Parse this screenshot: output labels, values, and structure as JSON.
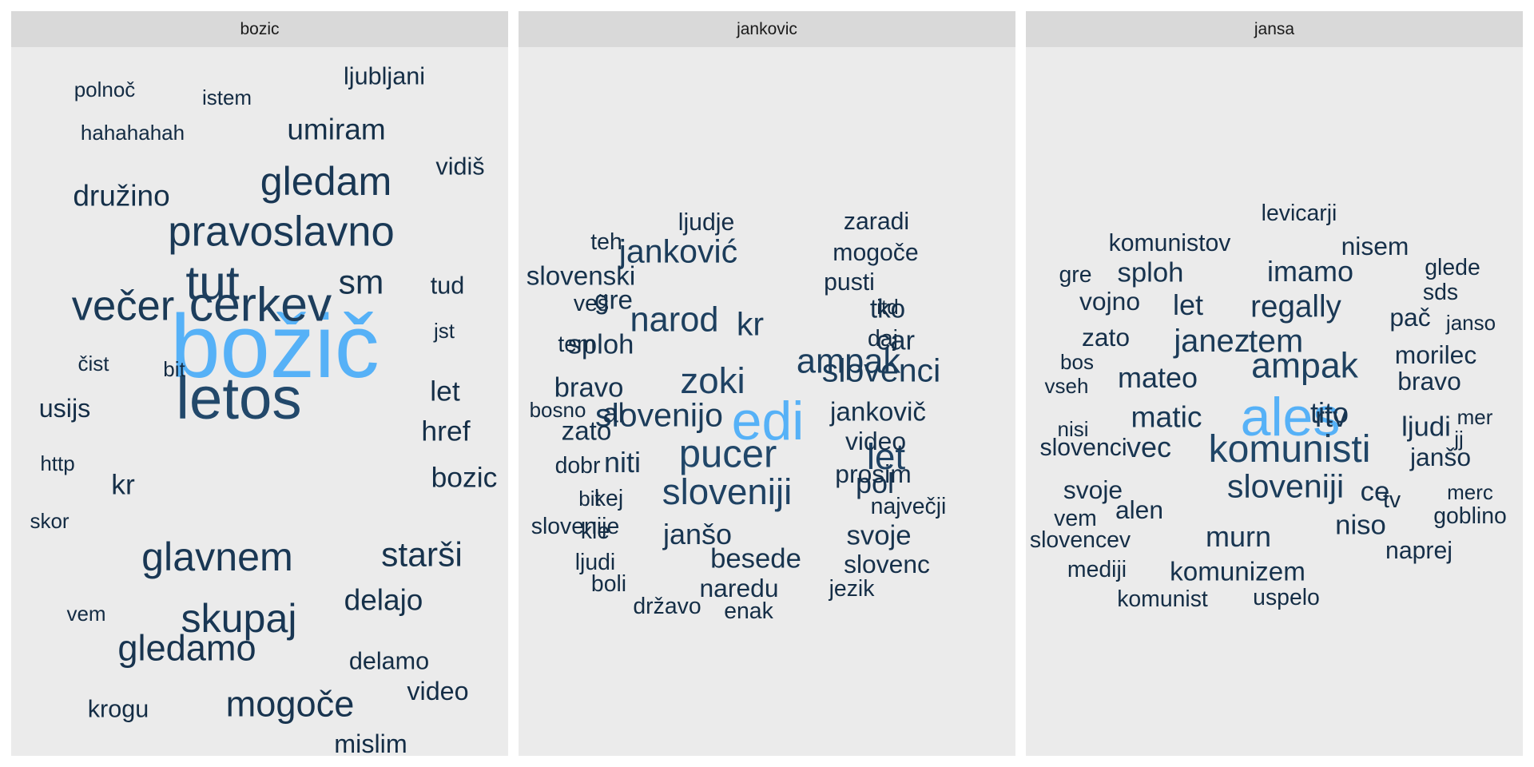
{
  "chart_data": {
    "type": "wordcloud",
    "color_scale": {
      "low": "#132b43",
      "high": "#56b1f7"
    },
    "panels": [
      {
        "title": "bozic",
        "words": [
          {
            "text": "božič",
            "weight": 100
          },
          {
            "text": "letos",
            "weight": 60
          },
          {
            "text": "cerkev",
            "weight": 47
          },
          {
            "text": "tut",
            "weight": 47
          },
          {
            "text": "pravoslavno",
            "weight": 40
          },
          {
            "text": "večer",
            "weight": 40
          },
          {
            "text": "skupaj",
            "weight": 38
          },
          {
            "text": "glavnem",
            "weight": 38
          },
          {
            "text": "gledam",
            "weight": 38
          },
          {
            "text": "gledamo",
            "weight": 34
          },
          {
            "text": "mogoče",
            "weight": 34
          },
          {
            "text": "starši",
            "weight": 32
          },
          {
            "text": "sm",
            "weight": 32
          },
          {
            "text": "družino",
            "weight": 28
          },
          {
            "text": "delajo",
            "weight": 28
          },
          {
            "text": "umiram",
            "weight": 28
          },
          {
            "text": "bozic",
            "weight": 27
          },
          {
            "text": "href",
            "weight": 27
          },
          {
            "text": "let",
            "weight": 27
          },
          {
            "text": "kr",
            "weight": 27
          },
          {
            "text": "usijs",
            "weight": 25
          },
          {
            "text": "mislim",
            "weight": 25
          },
          {
            "text": "video",
            "weight": 25
          },
          {
            "text": "vidiš",
            "weight": 24
          },
          {
            "text": "ljubljani",
            "weight": 24
          },
          {
            "text": "delamo",
            "weight": 24
          },
          {
            "text": "krogu",
            "weight": 24
          },
          {
            "text": "tud",
            "weight": 24
          },
          {
            "text": "polnoč",
            "weight": 22
          },
          {
            "text": "čist",
            "weight": 22
          },
          {
            "text": "jst",
            "weight": 22
          },
          {
            "text": "hahahahah",
            "weight": 22
          },
          {
            "text": "bit",
            "weight": 22
          },
          {
            "text": "istem",
            "weight": 22
          },
          {
            "text": "vem",
            "weight": 22
          },
          {
            "text": "http",
            "weight": 22
          },
          {
            "text": "skor",
            "weight": 22
          }
        ]
      },
      {
        "title": "jankovic",
        "words": [
          {
            "text": "edi",
            "weight": 100
          },
          {
            "text": "pucer",
            "weight": 62
          },
          {
            "text": "sloveniji",
            "weight": 56
          },
          {
            "text": "zoki",
            "weight": 56
          },
          {
            "text": "let",
            "weight": 56
          },
          {
            "text": "narod",
            "weight": 52
          },
          {
            "text": "ampak",
            "weight": 52
          },
          {
            "text": "slovenci",
            "weight": 48
          },
          {
            "text": "janković",
            "weight": 48
          },
          {
            "text": "slovenijo",
            "weight": 48
          },
          {
            "text": "kr",
            "weight": 48
          },
          {
            "text": "janšo",
            "weight": 40
          },
          {
            "text": "niti",
            "weight": 40
          },
          {
            "text": "pol",
            "weight": 40
          },
          {
            "text": "besede",
            "weight": 38
          },
          {
            "text": "svoje",
            "weight": 38
          },
          {
            "text": "splоh",
            "weight": 38
          },
          {
            "text": "al",
            "weight": 38
          },
          {
            "text": "bravo",
            "weight": 38
          },
          {
            "text": "car",
            "weight": 38
          },
          {
            "text": "tko",
            "weight": 36
          },
          {
            "text": "jankovič",
            "weight": 36
          },
          {
            "text": "zato",
            "weight": 36
          },
          {
            "text": "gre",
            "weight": 36
          },
          {
            "text": "slovenski",
            "weight": 36
          },
          {
            "text": "naredu",
            "weight": 34
          },
          {
            "text": "slovenc",
            "weight": 34
          },
          {
            "text": "prosim",
            "weight": 34
          },
          {
            "text": "video",
            "weight": 34
          },
          {
            "text": "pusti",
            "weight": 32
          },
          {
            "text": "mogoče",
            "weight": 32
          },
          {
            "text": "zaradi",
            "weight": 32
          },
          {
            "text": "ljudje",
            "weight": 32
          },
          {
            "text": "največji",
            "weight": 30
          },
          {
            "text": "slovenije",
            "weight": 30
          },
          {
            "text": "kle",
            "weight": 30
          },
          {
            "text": "kej",
            "weight": 30
          },
          {
            "text": "ljudi",
            "weight": 30
          },
          {
            "text": "daj",
            "weight": 30
          },
          {
            "text": "teh",
            "weight": 30
          },
          {
            "text": "veš",
            "weight": 30
          },
          {
            "text": "tem",
            "weight": 30
          },
          {
            "text": "dobr",
            "weight": 30
          },
          {
            "text": "državo",
            "weight": 30
          },
          {
            "text": "enak",
            "weight": 30
          },
          {
            "text": "jezik",
            "weight": 30
          },
          {
            "text": "boli",
            "weight": 30
          },
          {
            "text": "itd",
            "weight": 28
          },
          {
            "text": "bosno",
            "weight": 28
          },
          {
            "text": "bit",
            "weight": 28
          }
        ]
      },
      {
        "title": "jansa",
        "words": [
          {
            "text": "ales",
            "weight": 100
          },
          {
            "text": "komunisti",
            "weight": 60
          },
          {
            "text": "ampak",
            "weight": 54
          },
          {
            "text": "sloveniji",
            "weight": 48
          },
          {
            "text": "tem",
            "weight": 48
          },
          {
            "text": "janez",
            "weight": 46
          },
          {
            "text": "regally",
            "weight": 44
          },
          {
            "text": "matic",
            "weight": 42
          },
          {
            "text": "imamo",
            "weight": 40
          },
          {
            "text": "mateo",
            "weight": 40
          },
          {
            "text": "murn",
            "weight": 40
          },
          {
            "text": "let",
            "weight": 40
          },
          {
            "text": "vec",
            "weight": 40
          },
          {
            "text": "tito",
            "weight": 40
          },
          {
            "text": "rtv",
            "weight": 40
          },
          {
            "text": "ljudi",
            "weight": 38
          },
          {
            "text": "ce",
            "weight": 38
          },
          {
            "text": "splоh",
            "weight": 38
          },
          {
            "text": "niso",
            "weight": 38
          },
          {
            "text": "komunizem",
            "weight": 36
          },
          {
            "text": "morilec",
            "weight": 34
          },
          {
            "text": "bravo",
            "weight": 34
          },
          {
            "text": "janšo",
            "weight": 34
          },
          {
            "text": "nisem",
            "weight": 34
          },
          {
            "text": "pač",
            "weight": 34
          },
          {
            "text": "zato",
            "weight": 34
          },
          {
            "text": "vojno",
            "weight": 34
          },
          {
            "text": "svoje",
            "weight": 34
          },
          {
            "text": "alen",
            "weight": 34
          },
          {
            "text": "komunistov",
            "weight": 32
          },
          {
            "text": "naprej",
            "weight": 32
          },
          {
            "text": "slovenci",
            "weight": 32
          },
          {
            "text": "komunist",
            "weight": 30
          },
          {
            "text": "uspelo",
            "weight": 30
          },
          {
            "text": "mediji",
            "weight": 30
          },
          {
            "text": "slovencev",
            "weight": 30
          },
          {
            "text": "vem",
            "weight": 30
          },
          {
            "text": "gre",
            "weight": 30
          },
          {
            "text": "goblino",
            "weight": 30
          },
          {
            "text": "sds",
            "weight": 30
          },
          {
            "text": "glede",
            "weight": 30
          },
          {
            "text": "levicarji",
            "weight": 30
          },
          {
            "text": "tv",
            "weight": 30
          },
          {
            "text": "merc",
            "weight": 28
          },
          {
            "text": "mer",
            "weight": 28
          },
          {
            "text": "janso",
            "weight": 28
          },
          {
            "text": "nisi",
            "weight": 28
          },
          {
            "text": "vseh",
            "weight": 28
          },
          {
            "text": "bos",
            "weight": 28
          },
          {
            "text": "jj",
            "weight": 28
          }
        ]
      }
    ]
  }
}
